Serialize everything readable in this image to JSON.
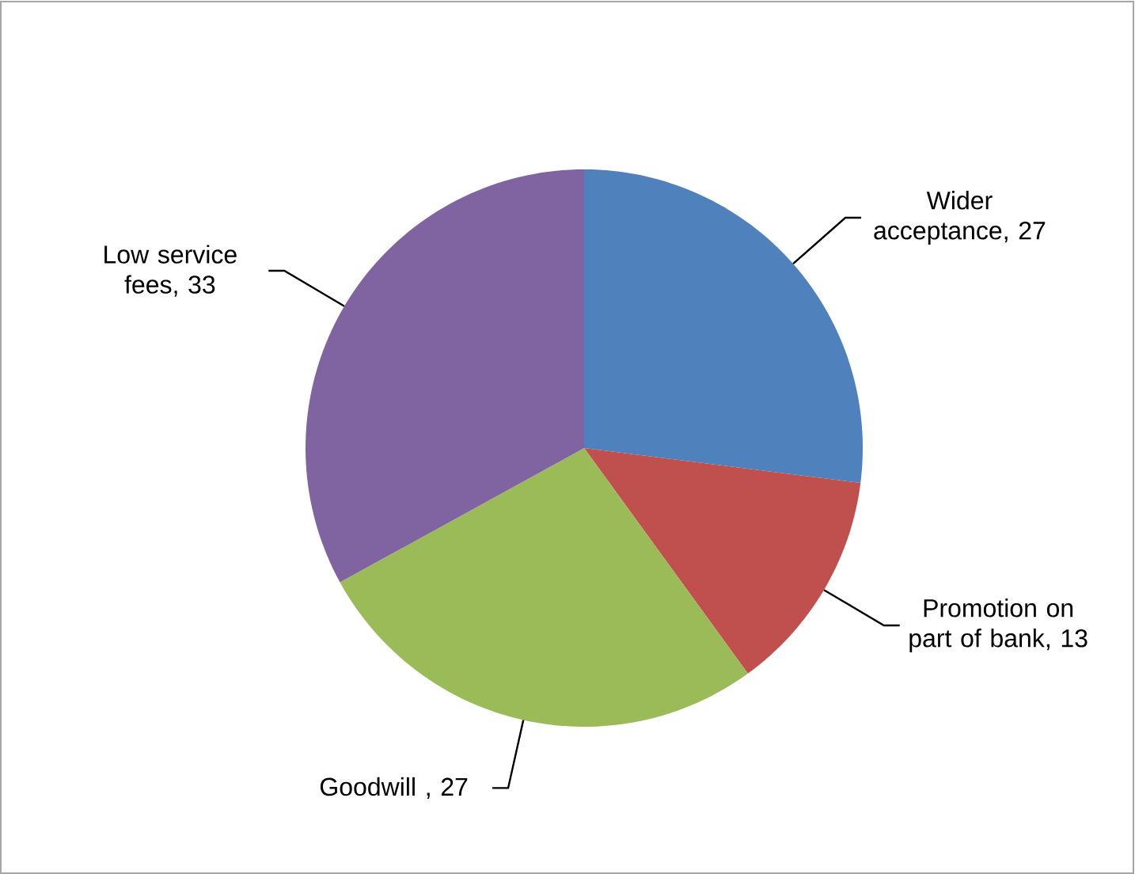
{
  "chart_data": {
    "type": "pie",
    "categories": [
      "Wider acceptance",
      "Promotion on part of bank",
      "Goodwill ",
      "Low service fees"
    ],
    "values": [
      27,
      13,
      27,
      33
    ],
    "colors": [
      "#4f81bd",
      "#c0504d",
      "#9bbb59",
      "#8064a2"
    ],
    "value_labels": [
      ", 27",
      ", 13",
      ", 27",
      ", 33"
    ]
  }
}
